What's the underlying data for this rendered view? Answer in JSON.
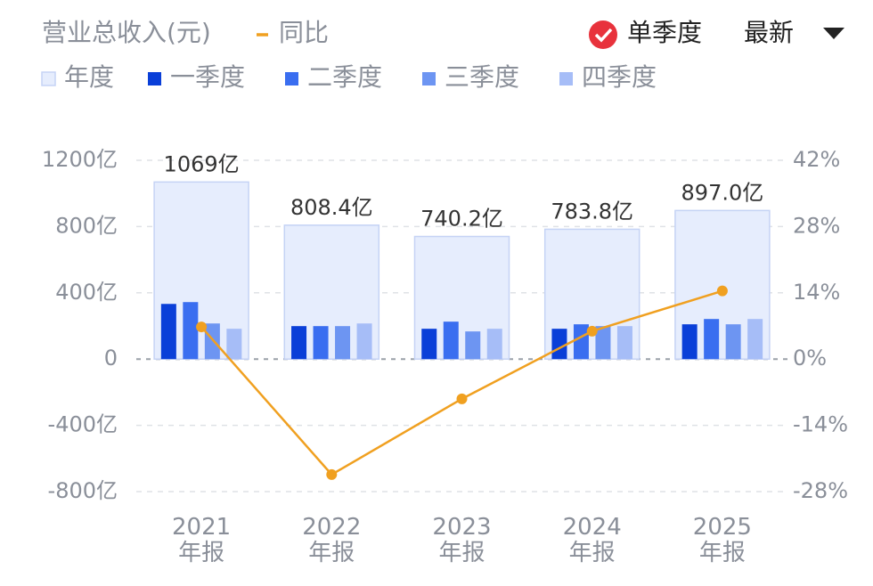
{
  "chart_data": {
    "type": "bar",
    "title": "营业总收入(元)",
    "toggle_label": "单季度",
    "period_label": "最新",
    "categories": [
      "2021\n年报",
      "2022\n年报",
      "2023\n年报",
      "2024\n年报",
      "2025\n年报"
    ],
    "series": [
      {
        "name": "年度",
        "color": "#e6edfd",
        "values": [
          1069,
          808.4,
          740.2,
          783.8,
          897.0
        ],
        "value_labels": [
          "1069亿",
          "808.4亿",
          "740.2亿",
          "783.8亿",
          "897.0亿"
        ]
      },
      {
        "name": "一季度",
        "color": "#0a3fd8",
        "values": [
          333,
          199,
          183,
          183,
          210
        ]
      },
      {
        "name": "二季度",
        "color": "#3a6ef0",
        "values": [
          344,
          199,
          226,
          210,
          242
        ]
      },
      {
        "name": "三季度",
        "color": "#6d95f2",
        "values": [
          215,
          199,
          167,
          199,
          210
        ]
      },
      {
        "name": "四季度",
        "color": "#a6bdf7",
        "values": [
          183,
          215,
          183,
          199,
          242
        ]
      },
      {
        "name": "同比",
        "color": "#f0a020",
        "type": "line",
        "axis": "y2",
        "values": [
          6.8,
          -24.4,
          -8.4,
          5.9,
          14.4
        ]
      }
    ],
    "ylim": [
      -800,
      1200
    ],
    "yticks": [
      {
        "value": 1200,
        "label": "1200亿"
      },
      {
        "value": 800,
        "label": "800亿"
      },
      {
        "value": 400,
        "label": "400亿"
      },
      0,
      {
        "value": -400,
        "label": "-400亿"
      },
      {
        "value": -800,
        "label": "-800亿"
      }
    ],
    "y2lim": [
      -28,
      42
    ],
    "y2ticks": [
      {
        "value": 42,
        "label": "42%"
      },
      {
        "value": 28,
        "label": "28%"
      },
      {
        "value": 14,
        "label": "14%"
      },
      {
        "value": 0,
        "label": "0%"
      },
      {
        "value": -14,
        "label": "-14%"
      },
      {
        "value": -28,
        "label": "-28%"
      }
    ],
    "grid": true
  }
}
